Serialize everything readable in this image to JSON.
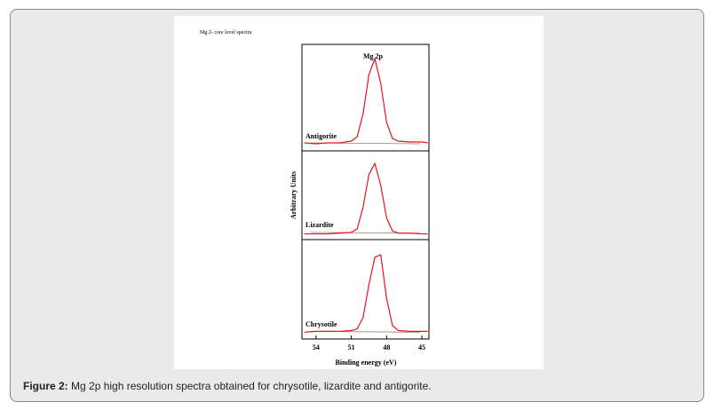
{
  "figure_note": "Mg 2- core level spectra",
  "chart_data": {
    "type": "line",
    "title": "Mg 2p",
    "x_label": "Binding energy (eV)",
    "y_label": "Arbitrary Units",
    "x": [
      55,
      54,
      53,
      52,
      51,
      50.5,
      50,
      49.5,
      49,
      48.5,
      48,
      47.5,
      47,
      46,
      45,
      44.5
    ],
    "xlim": [
      55.2,
      44.4
    ],
    "xticks": [
      54,
      51,
      48,
      45
    ],
    "ylim": [
      0,
      1.1
    ],
    "series": [
      {
        "name": "Antigorite",
        "color": "#e8141b",
        "values": [
          0.05,
          0.04,
          0.05,
          0.05,
          0.07,
          0.12,
          0.38,
          0.82,
          1.0,
          0.72,
          0.28,
          0.1,
          0.07,
          0.06,
          0.06,
          0.05
        ]
      },
      {
        "name": "Lizardite",
        "color": "#e8141b",
        "values": [
          0.03,
          0.03,
          0.03,
          0.04,
          0.05,
          0.1,
          0.4,
          0.85,
          1.0,
          0.7,
          0.25,
          0.07,
          0.04,
          0.04,
          0.03,
          0.03
        ]
      },
      {
        "name": "Chrysotile",
        "color": "#e8141b",
        "values": [
          0.04,
          0.05,
          0.05,
          0.05,
          0.06,
          0.08,
          0.22,
          0.62,
          0.95,
          0.98,
          0.45,
          0.12,
          0.06,
          0.05,
          0.05,
          0.05
        ]
      }
    ]
  },
  "caption": {
    "label": "Figure 2:",
    "text": "Mg 2p high resolution spectra obtained for chrysotile, lizardite and antigorite."
  }
}
